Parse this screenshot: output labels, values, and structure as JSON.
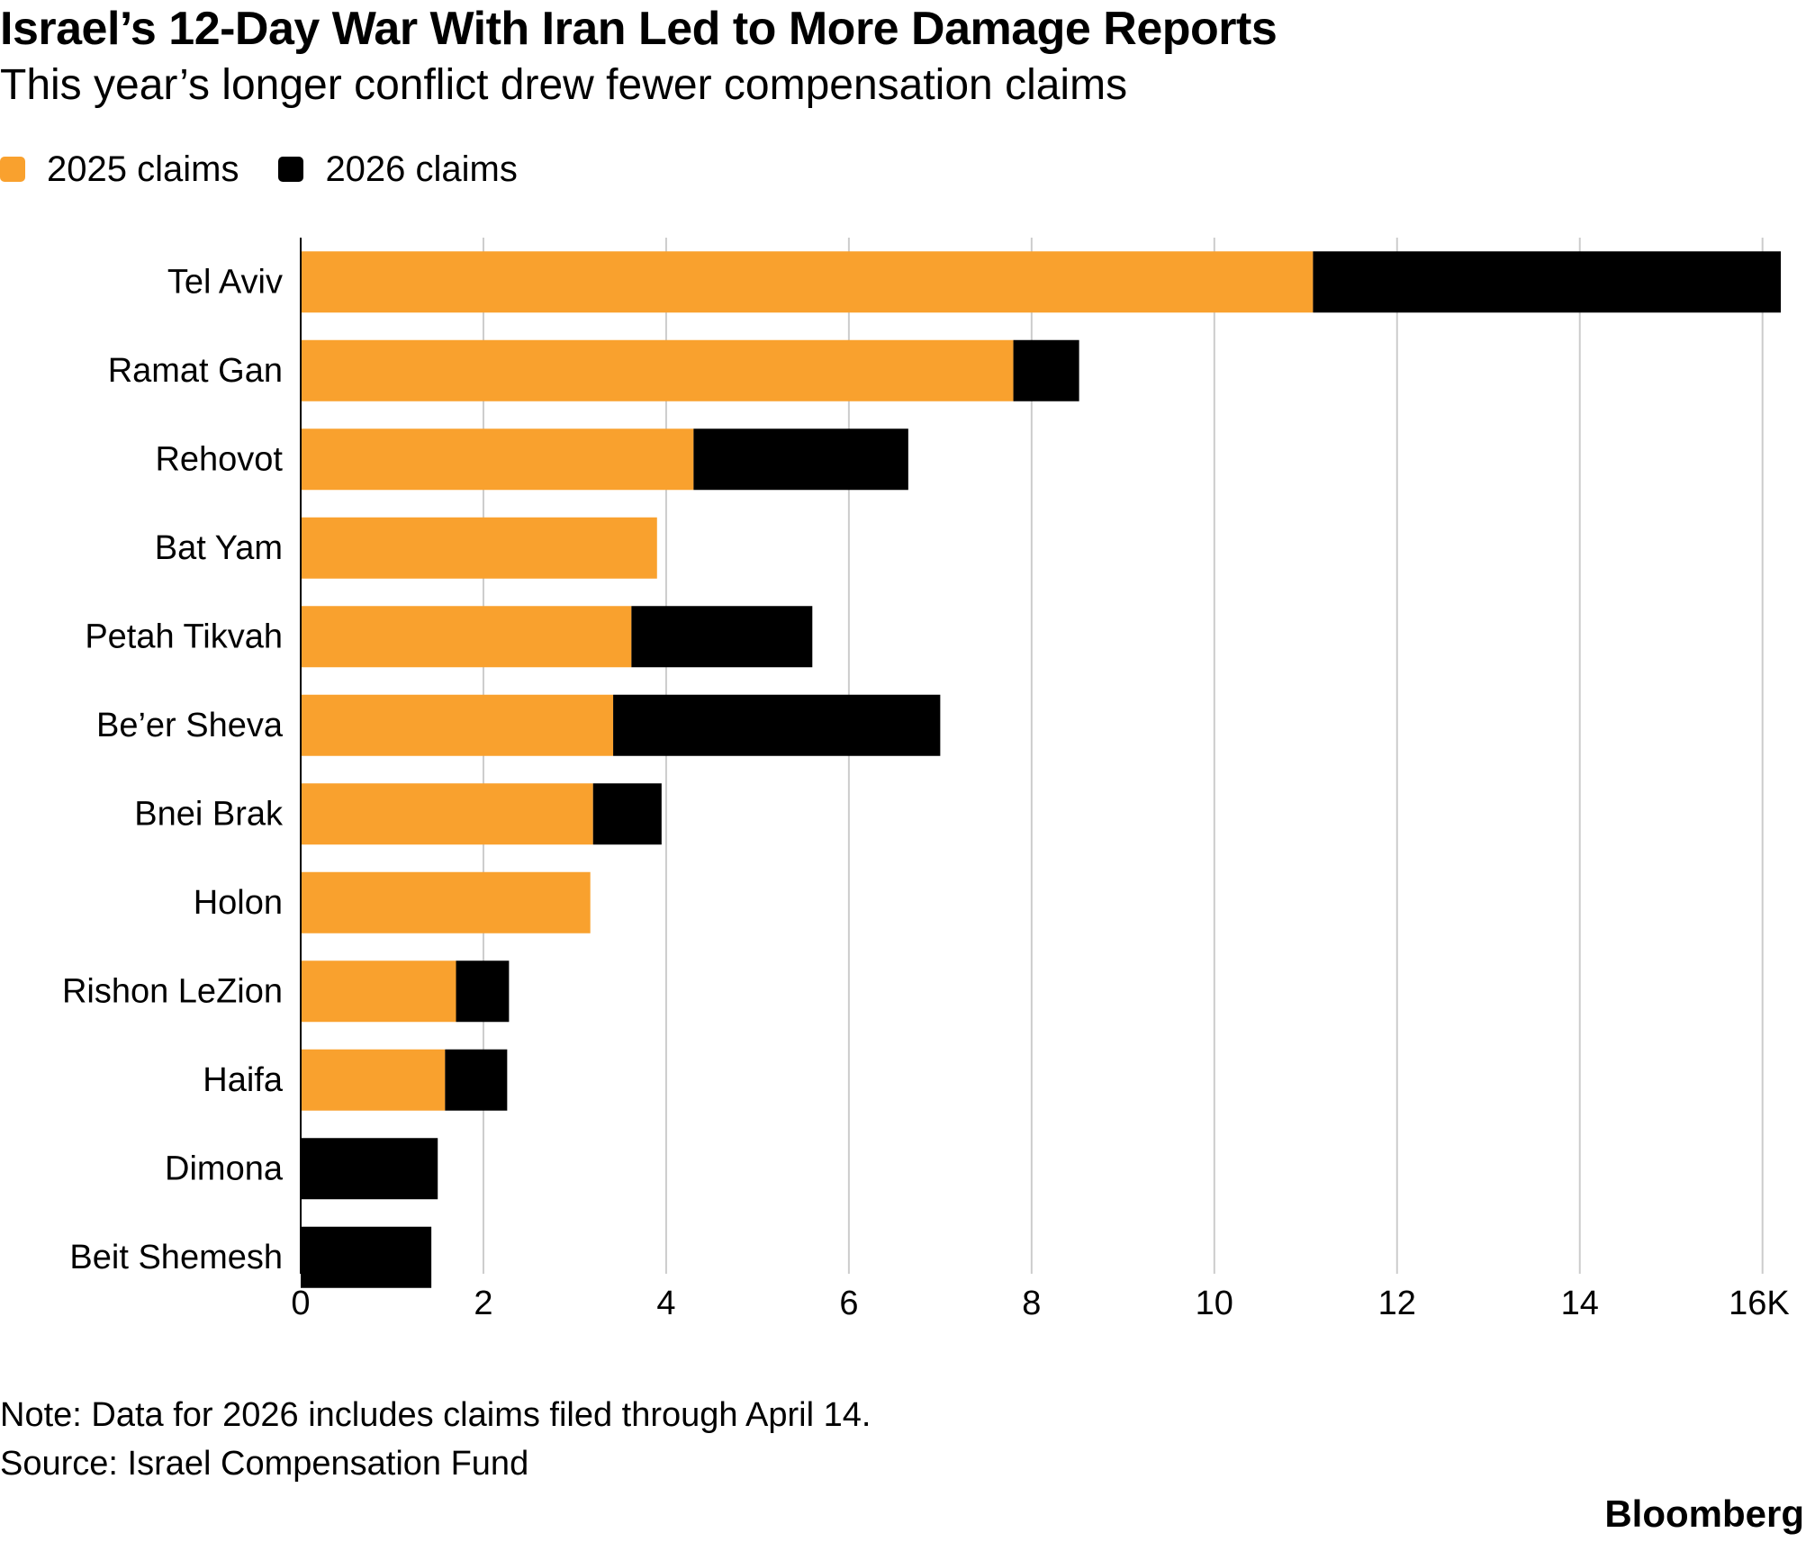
{
  "title": "Israel’s 12-Day War With Iran Led to More Damage Reports",
  "subtitle": "This year’s longer conflict drew fewer compensation claims",
  "legend": [
    {
      "label": "2025 claims",
      "color": "#F9A12E"
    },
    {
      "label": "2026 claims",
      "color": "#000000"
    }
  ],
  "note": "Note: Data for 2026 includes claims filed through April 14.",
  "source": "Source: Israel Compensation Fund",
  "brand": "Bloomberg",
  "chart_data": {
    "type": "bar",
    "orientation": "horizontal",
    "stacked": true,
    "title": "Israel’s 12-Day War With Iran Led to More Damage Reports",
    "subtitle": "This year’s longer conflict drew fewer compensation claims",
    "categories": [
      "Tel Aviv",
      "Ramat Gan",
      "Rehovot",
      "Bat Yam",
      "Petah Tikvah",
      "Be’er Sheva",
      "Bnei Brak",
      "Holon",
      "Rishon LeZion",
      "Haifa",
      "Dimona",
      "Beit Shemesh"
    ],
    "series": [
      {
        "name": "2025 claims",
        "color": "#F9A12E",
        "values": [
          11.08,
          7.8,
          4.3,
          3.9,
          3.62,
          3.42,
          3.2,
          3.17,
          1.7,
          1.58,
          0,
          0
        ]
      },
      {
        "name": "2026 claims",
        "color": "#000000",
        "values": [
          5.12,
          0.72,
          2.35,
          0,
          1.98,
          3.58,
          0.75,
          0,
          0.58,
          0.68,
          1.5,
          1.43
        ]
      }
    ],
    "xlim": [
      0,
      16.2
    ],
    "xticks": [
      0,
      2,
      4,
      6,
      8,
      10,
      12,
      14,
      16
    ],
    "xtick_labels": [
      "0",
      "2",
      "4",
      "6",
      "8",
      "10",
      "12",
      "14",
      "16K"
    ],
    "xlabel": "",
    "ylabel": "",
    "grid": "vertical",
    "legend_position": "top-left"
  }
}
